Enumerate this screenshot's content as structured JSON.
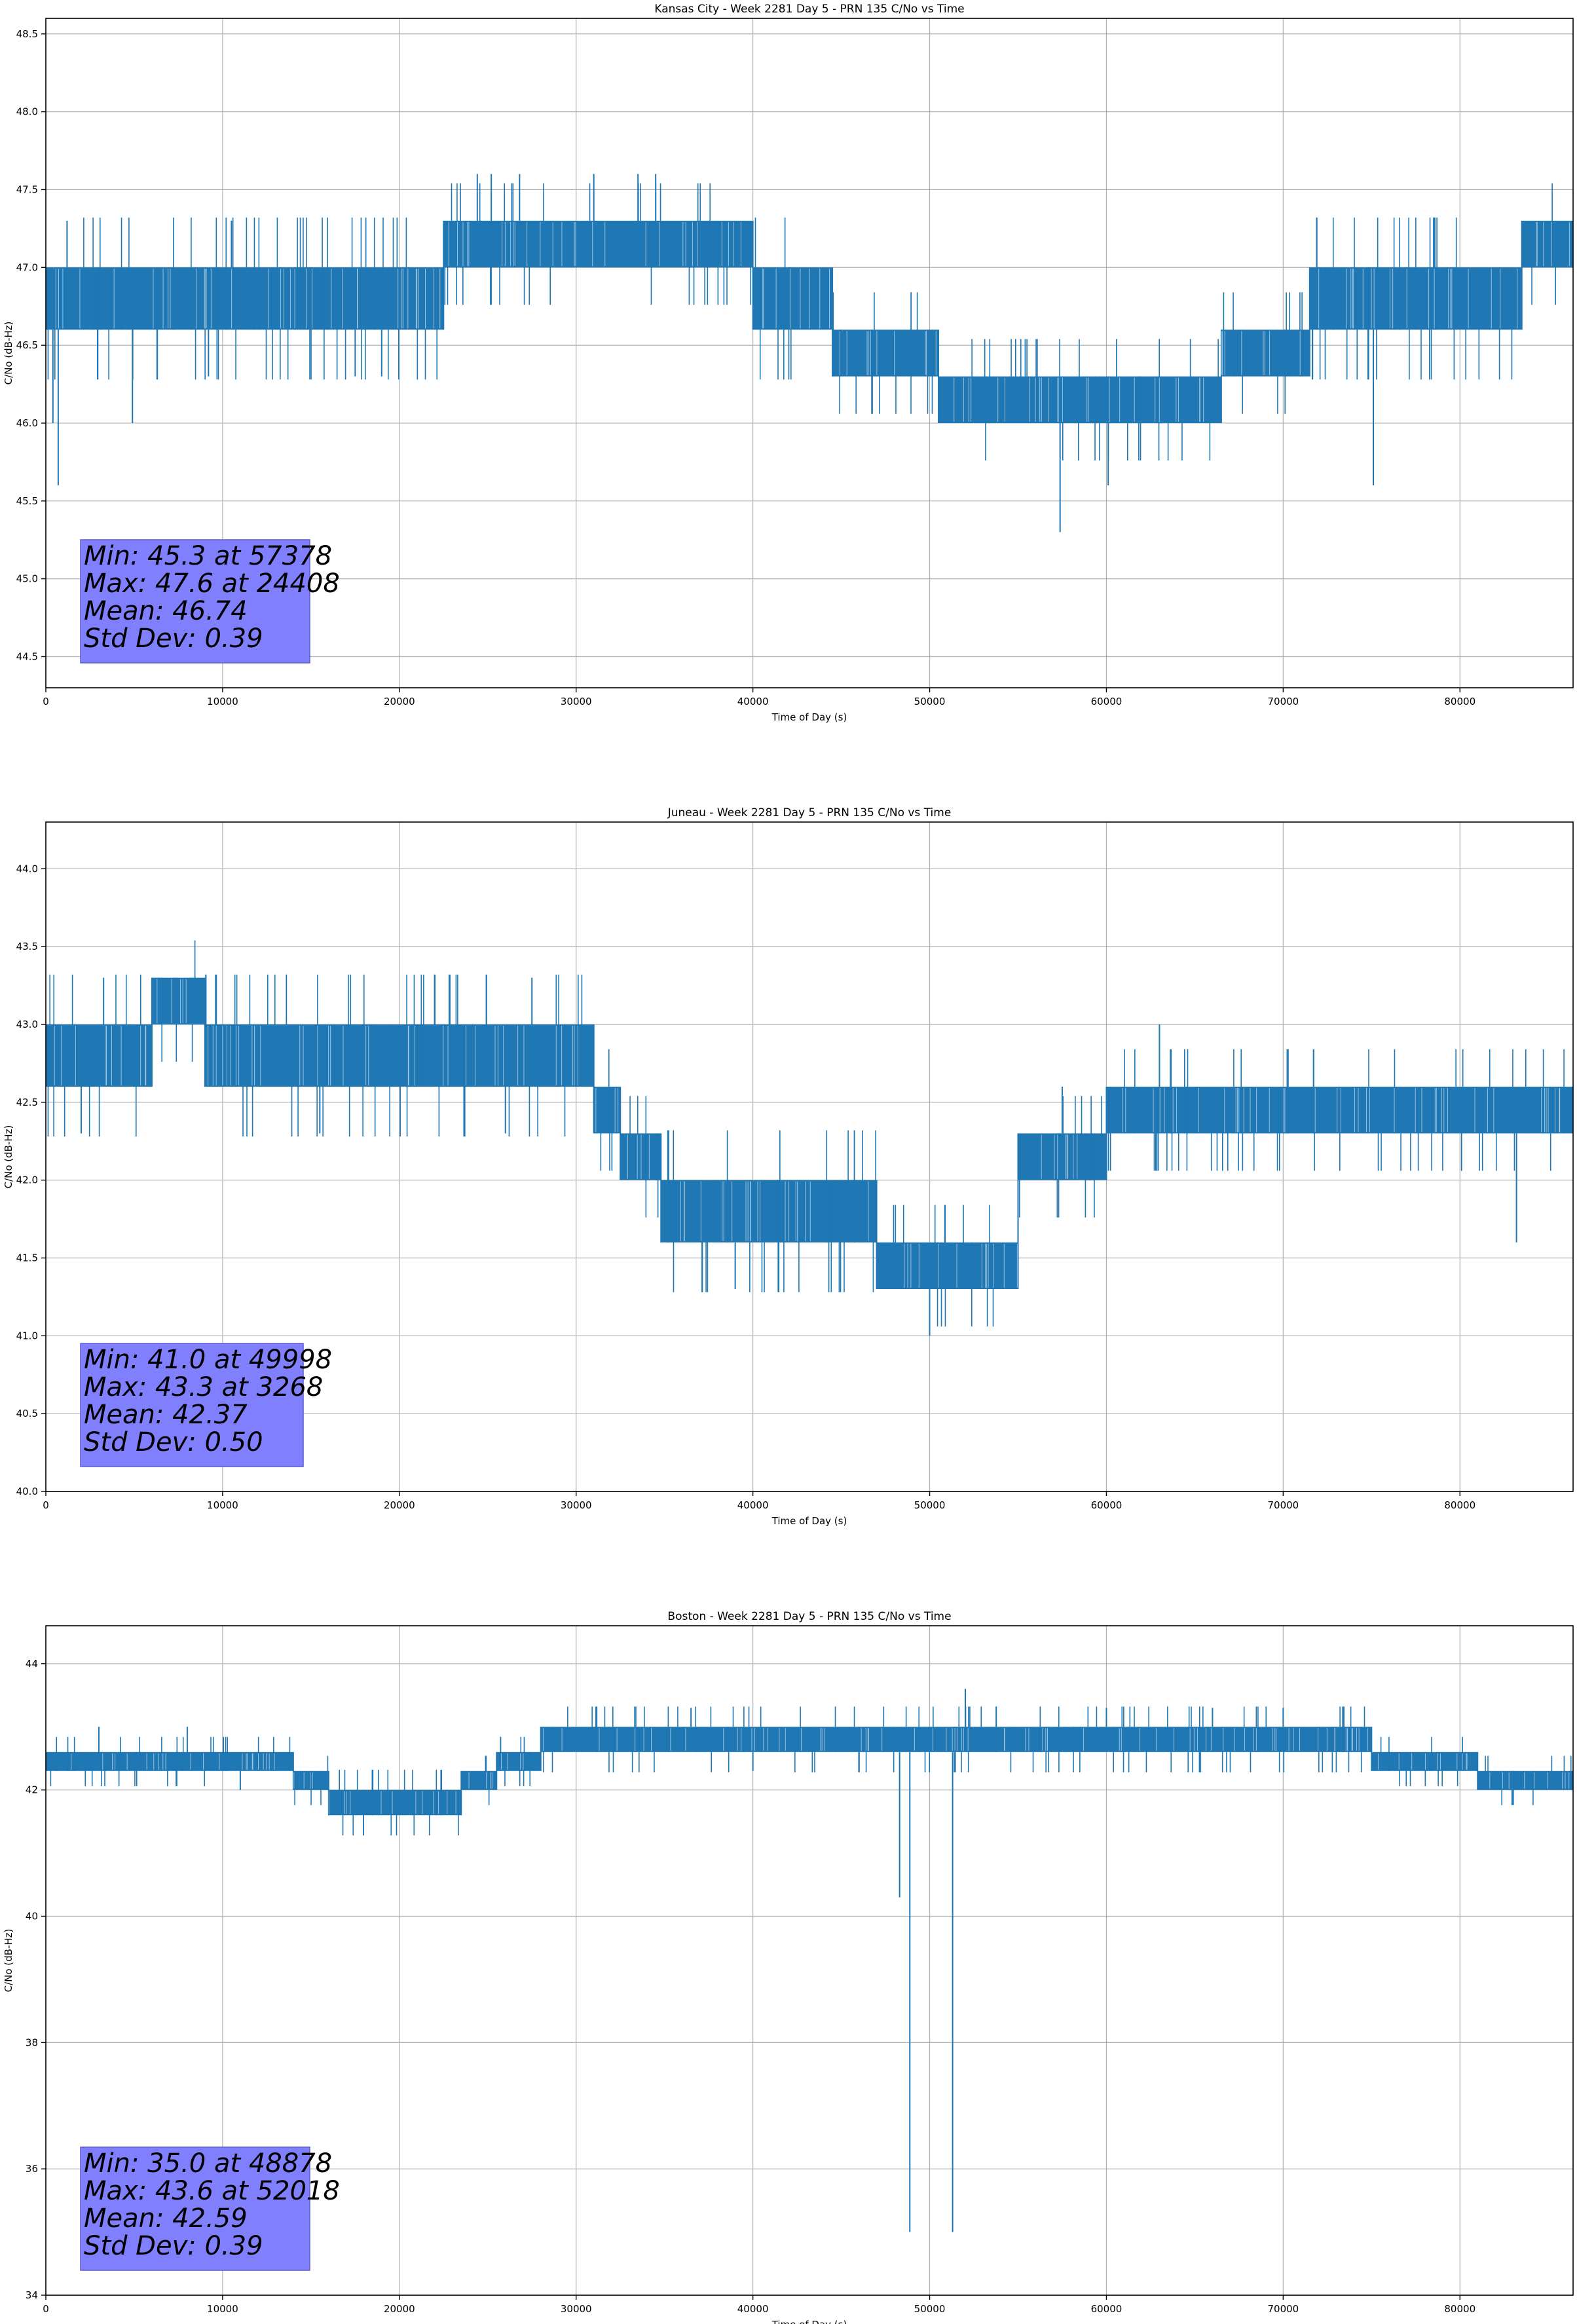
{
  "figure": {
    "xlabel": "Time of Day (s)",
    "ylabel": "C/No (dB-Hz)",
    "line_color": "#1f77b4",
    "stats_box_color": "#8080ff"
  },
  "chart_data": [
    {
      "type": "line",
      "title": "Kansas City - Week 2281 Day 5 - PRN 135 C/No vs Time",
      "xlabel": "Time of Day (s)",
      "ylabel": "C/No (dB-Hz)",
      "xlim": [
        0,
        86400
      ],
      "ylim": [
        44.3,
        48.6
      ],
      "xticks": [
        0,
        10000,
        20000,
        30000,
        40000,
        50000,
        60000,
        70000,
        80000
      ],
      "yticks": [
        44.5,
        45.0,
        45.5,
        46.0,
        46.5,
        47.0,
        47.5,
        48.0,
        48.5
      ],
      "ytick_decimals": 1,
      "grid": true,
      "series": [
        {
          "style": "dense quantized time series (fills between low and high level)",
          "segments": [
            {
              "x": [
                0,
                22500
              ],
              "low": 46.6,
              "high": 47.0
            },
            {
              "x": [
                22500,
                40000
              ],
              "low": 47.0,
              "high": 47.3
            },
            {
              "x": [
                40000,
                44500
              ],
              "low": 46.6,
              "high": 47.0
            },
            {
              "x": [
                44500,
                50500
              ],
              "low": 46.3,
              "high": 46.6
            },
            {
              "x": [
                50500,
                66500
              ],
              "low": 46.0,
              "high": 46.3
            },
            {
              "x": [
                66500,
                71500
              ],
              "low": 46.3,
              "high": 46.6
            },
            {
              "x": [
                71500,
                83500
              ],
              "low": 46.6,
              "high": 47.0
            },
            {
              "x": [
                83500,
                86400
              ],
              "low": 47.0,
              "high": 47.3
            }
          ],
          "excursions": [
            {
              "x": 400,
              "y": 46.0
            },
            {
              "x": 700,
              "y": 45.6
            },
            {
              "x": 4900,
              "y": 46.0
            },
            {
              "x": 9200,
              "y": 46.3
            },
            {
              "x": 17500,
              "y": 46.3
            },
            {
              "x": 19000,
              "y": 46.3
            },
            {
              "x": 24408,
              "y": 47.6
            },
            {
              "x": 25200,
              "y": 47.6
            },
            {
              "x": 26800,
              "y": 47.6
            },
            {
              "x": 31000,
              "y": 47.6
            },
            {
              "x": 33500,
              "y": 47.6
            },
            {
              "x": 34500,
              "y": 47.6
            },
            {
              "x": 57378,
              "y": 45.3
            },
            {
              "x": 60100,
              "y": 45.6
            },
            {
              "x": 75100,
              "y": 45.6
            },
            {
              "x": 1200,
              "y": 47.3
            },
            {
              "x": 10500,
              "y": 47.3
            },
            {
              "x": 45000,
              "y": 46.3
            }
          ]
        }
      ],
      "stats": {
        "min": "Min: 45.3 at 57378",
        "max": "Max: 47.6 at 24408",
        "mean": "Mean: 46.74",
        "std": "Std Dev: 0.39"
      }
    },
    {
      "type": "line",
      "title": "Juneau - Week 2281 Day 5 - PRN 135 C/No vs Time",
      "xlabel": "Time of Day (s)",
      "ylabel": "C/No (dB-Hz)",
      "xlim": [
        0,
        86400
      ],
      "ylim": [
        40.0,
        44.3
      ],
      "xticks": [
        0,
        10000,
        20000,
        30000,
        40000,
        50000,
        60000,
        70000,
        80000
      ],
      "yticks": [
        40.0,
        40.5,
        41.0,
        41.5,
        42.0,
        42.5,
        43.0,
        43.5,
        44.0
      ],
      "ytick_decimals": 1,
      "grid": true,
      "series": [
        {
          "style": "dense quantized time series (fills between low and high level)",
          "segments": [
            {
              "x": [
                0,
                6000
              ],
              "low": 42.6,
              "high": 43.0
            },
            {
              "x": [
                6000,
                9000
              ],
              "low": 43.0,
              "high": 43.3
            },
            {
              "x": [
                9000,
                31000
              ],
              "low": 42.6,
              "high": 43.0
            },
            {
              "x": [
                31000,
                32500
              ],
              "low": 42.3,
              "high": 42.6
            },
            {
              "x": [
                32500,
                34800
              ],
              "low": 42.0,
              "high": 42.3
            },
            {
              "x": [
                34800,
                47000
              ],
              "low": 41.6,
              "high": 42.0
            },
            {
              "x": [
                47000,
                55000
              ],
              "low": 41.3,
              "high": 41.6
            },
            {
              "x": [
                55000,
                60000
              ],
              "low": 42.0,
              "high": 42.3
            },
            {
              "x": [
                60000,
                86400
              ],
              "low": 42.3,
              "high": 42.6
            }
          ],
          "excursions": [
            {
              "x": 3268,
              "y": 43.3
            },
            {
              "x": 15500,
              "y": 42.3
            },
            {
              "x": 26000,
              "y": 42.3
            },
            {
              "x": 49998,
              "y": 41.0
            },
            {
              "x": 83200,
              "y": 41.6
            },
            {
              "x": 39000,
              "y": 41.3
            },
            {
              "x": 57500,
              "y": 42.6
            },
            {
              "x": 63000,
              "y": 43.0
            },
            {
              "x": 2000,
              "y": 42.3
            },
            {
              "x": 22000,
              "y": 43.3
            },
            {
              "x": 27500,
              "y": 43.3
            }
          ]
        }
      ],
      "stats": {
        "min": "Min: 41.0 at 49998",
        "max": "Max: 43.3 at 3268",
        "mean": "Mean: 42.37",
        "std": "Std Dev: 0.50"
      }
    },
    {
      "type": "line",
      "title": "Boston - Week 2281 Day 5 - PRN 135 C/No vs Time",
      "xlabel": "Time of Day (s)",
      "ylabel": "C/No (dB-Hz)",
      "xlim": [
        0,
        86400
      ],
      "ylim": [
        34,
        44.6
      ],
      "xticks": [
        0,
        10000,
        20000,
        30000,
        40000,
        50000,
        60000,
        70000,
        80000
      ],
      "yticks": [
        34,
        36,
        38,
        40,
        42,
        44
      ],
      "ytick_decimals": 0,
      "grid": true,
      "series": [
        {
          "style": "dense quantized time series (fills between low and high level)",
          "segments": [
            {
              "x": [
                0,
                14000
              ],
              "low": 42.3,
              "high": 42.6
            },
            {
              "x": [
                14000,
                16000
              ],
              "low": 42.0,
              "high": 42.3
            },
            {
              "x": [
                16000,
                23500
              ],
              "low": 41.6,
              "high": 42.0
            },
            {
              "x": [
                23500,
                25500
              ],
              "low": 42.0,
              "high": 42.3
            },
            {
              "x": [
                25500,
                28000
              ],
              "low": 42.3,
              "high": 42.6
            },
            {
              "x": [
                28000,
                75000
              ],
              "low": 42.6,
              "high": 43.0
            },
            {
              "x": [
                75000,
                81000
              ],
              "low": 42.3,
              "high": 42.6
            },
            {
              "x": [
                81000,
                86400
              ],
              "low": 42.0,
              "high": 42.3
            }
          ],
          "excursions": [
            {
              "x": 48300,
              "y": 40.3
            },
            {
              "x": 48878,
              "y": 35.0
            },
            {
              "x": 51300,
              "y": 35.0
            },
            {
              "x": 52018,
              "y": 43.6
            },
            {
              "x": 3000,
              "y": 43.0
            },
            {
              "x": 8000,
              "y": 43.0
            },
            {
              "x": 11000,
              "y": 42.0
            },
            {
              "x": 60000,
              "y": 43.3
            },
            {
              "x": 66000,
              "y": 43.3
            },
            {
              "x": 36500,
              "y": 43.3
            },
            {
              "x": 40000,
              "y": 42.3
            },
            {
              "x": 70000,
              "y": 43.3
            }
          ]
        }
      ],
      "stats": {
        "min": "Min: 35.0 at 48878",
        "max": "Max: 43.6 at 52018",
        "mean": "Mean: 42.59",
        "std": "Std Dev: 0.39"
      }
    }
  ]
}
